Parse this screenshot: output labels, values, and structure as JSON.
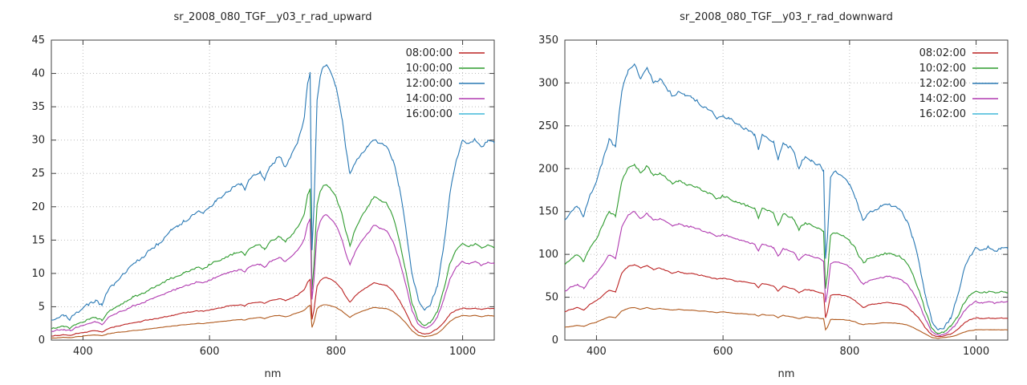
{
  "page": {
    "background": "#ffffff"
  },
  "chart_data": [
    {
      "type": "line",
      "title": "sr_2008_080_TGF__y03_r_rad_upward",
      "xlabel": "nm",
      "xlim": [
        350,
        1050
      ],
      "xticks": [
        400,
        600,
        800,
        1000
      ],
      "ylim": [
        0,
        45
      ],
      "yticks": [
        0,
        5,
        10,
        15,
        20,
        25,
        30,
        35,
        40,
        45
      ],
      "grid": true,
      "legend_position": "top-right",
      "x": [
        350,
        360,
        370,
        380,
        390,
        400,
        410,
        420,
        430,
        440,
        450,
        460,
        470,
        480,
        490,
        500,
        510,
        520,
        530,
        540,
        550,
        560,
        570,
        580,
        590,
        600,
        610,
        620,
        630,
        640,
        650,
        656,
        662,
        670,
        680,
        687,
        695,
        700,
        710,
        715,
        720,
        725,
        730,
        740,
        750,
        755,
        759,
        762,
        765,
        770,
        775,
        780,
        785,
        790,
        800,
        810,
        815,
        822,
        830,
        840,
        850,
        860,
        870,
        880,
        890,
        900,
        910,
        920,
        930,
        940,
        950,
        960,
        970,
        980,
        990,
        1000,
        1010,
        1020,
        1030,
        1040,
        1050
      ],
      "series": [
        {
          "label": "08:00:00",
          "legend_color": "#bb2222",
          "line_color": "#bb2222",
          "values": [
            0.6,
            0.7,
            0.8,
            0.7,
            1.0,
            1.1,
            1.3,
            1.4,
            1.2,
            1.7,
            2.0,
            2.2,
            2.4,
            2.6,
            2.7,
            3.0,
            3.1,
            3.3,
            3.5,
            3.7,
            3.9,
            4.1,
            4.2,
            4.4,
            4.3,
            4.5,
            4.7,
            4.9,
            5.1,
            5.2,
            5.3,
            5.1,
            5.5,
            5.6,
            5.7,
            5.5,
            5.9,
            6.0,
            6.2,
            6.1,
            5.9,
            6.1,
            6.3,
            6.8,
            7.6,
            8.7,
            9.1,
            3.1,
            4.5,
            8.1,
            8.9,
            9.3,
            9.4,
            9.2,
            8.6,
            7.5,
            6.6,
            5.7,
            6.6,
            7.4,
            8.0,
            8.6,
            8.4,
            8.2,
            7.4,
            6.0,
            4.2,
            2.2,
            1.2,
            0.9,
            1.1,
            1.7,
            2.6,
            3.9,
            4.5,
            4.8,
            4.7,
            4.8,
            4.6,
            4.8,
            4.7
          ]
        },
        {
          "label": "10:00:00",
          "legend_color": "#2e9b2e",
          "line_color": "#2e9b2e",
          "values": [
            1.7,
            1.9,
            2.0,
            1.8,
            2.4,
            2.7,
            3.1,
            3.4,
            2.9,
            4.2,
            4.8,
            5.4,
            5.9,
            6.5,
            6.8,
            7.3,
            7.8,
            8.2,
            8.8,
            9.3,
            9.6,
            10.1,
            10.5,
            10.9,
            10.7,
            11.3,
            11.8,
            12.2,
            12.6,
            13.0,
            13.3,
            12.7,
            13.6,
            14.0,
            14.3,
            13.6,
            14.7,
            15.0,
            15.5,
            15.1,
            14.7,
            15.3,
            15.8,
            17.0,
            19.0,
            21.8,
            22.7,
            7.6,
            11.3,
            20.3,
            22.3,
            23.2,
            23.3,
            22.9,
            21.5,
            18.6,
            16.4,
            14.1,
            16.5,
            18.5,
            20.0,
            21.5,
            21.0,
            20.5,
            18.5,
            15.0,
            10.5,
            5.5,
            3.0,
            2.2,
            2.8,
            4.2,
            7.5,
            11.5,
            13.5,
            14.5,
            14.0,
            14.5,
            13.8,
            14.3,
            14.0
          ]
        },
        {
          "label": "12:00:00",
          "legend_color": "#2878b4",
          "line_color": "#2878b4",
          "values": [
            3.0,
            3.3,
            3.6,
            3.2,
            4.2,
            4.8,
            5.5,
            6.0,
            5.2,
            7.5,
            8.5,
            9.5,
            10.5,
            11.5,
            12.0,
            13.0,
            13.8,
            14.5,
            15.5,
            16.5,
            17.0,
            17.8,
            18.5,
            19.2,
            19.0,
            20.0,
            20.8,
            21.5,
            22.3,
            23.0,
            23.5,
            22.5,
            24.0,
            24.8,
            25.3,
            24.0,
            26.0,
            26.5,
            27.5,
            26.8,
            26.0,
            27.0,
            28.0,
            30.0,
            33.5,
            38.5,
            40.2,
            13.5,
            20.0,
            36.0,
            39.5,
            41.0,
            41.3,
            40.5,
            38.0,
            33.0,
            29.0,
            25.0,
            26.5,
            28.0,
            29.0,
            30.0,
            29.5,
            29.0,
            27.0,
            23.0,
            17.0,
            10.0,
            6.0,
            4.5,
            5.5,
            8.0,
            14.0,
            22.0,
            27.0,
            30.0,
            29.5,
            30.0,
            29.0,
            30.0,
            29.5
          ]
        },
        {
          "label": "14:00:00",
          "legend_color": "#b03ab0",
          "line_color": "#b03ab0",
          "values": [
            1.3,
            1.5,
            1.6,
            1.4,
            1.9,
            2.2,
            2.5,
            2.7,
            2.3,
            3.4,
            3.9,
            4.3,
            4.7,
            5.2,
            5.4,
            5.9,
            6.2,
            6.6,
            7.0,
            7.4,
            7.7,
            8.1,
            8.4,
            8.7,
            8.6,
            9.0,
            9.4,
            9.8,
            10.1,
            10.4,
            10.6,
            10.2,
            10.9,
            11.2,
            11.4,
            10.9,
            11.8,
            12.0,
            12.4,
            12.1,
            11.8,
            12.2,
            12.6,
            13.6,
            15.2,
            17.4,
            18.2,
            6.1,
            9.0,
            16.2,
            17.8,
            18.6,
            18.8,
            18.3,
            17.2,
            14.9,
            13.1,
            11.3,
            13.2,
            14.8,
            16.0,
            17.2,
            16.8,
            16.4,
            14.8,
            12.0,
            8.4,
            4.4,
            2.4,
            1.8,
            2.2,
            3.4,
            6.0,
            9.2,
            11.0,
            11.8,
            11.4,
            11.8,
            11.2,
            11.7,
            11.4
          ]
        },
        {
          "label": "16:00:00",
          "legend_color": "#40b8d8",
          "line_color": "#b05a1e",
          "values": [
            0.3,
            0.35,
            0.4,
            0.35,
            0.5,
            0.6,
            0.7,
            0.75,
            0.65,
            0.95,
            1.1,
            1.2,
            1.3,
            1.45,
            1.5,
            1.65,
            1.75,
            1.85,
            2.0,
            2.1,
            2.2,
            2.3,
            2.4,
            2.5,
            2.45,
            2.6,
            2.7,
            2.8,
            2.9,
            3.0,
            3.1,
            3.0,
            3.2,
            3.3,
            3.4,
            3.2,
            3.5,
            3.6,
            3.7,
            3.6,
            3.5,
            3.6,
            3.8,
            4.1,
            4.5,
            5.0,
            5.2,
            1.9,
            2.7,
            4.7,
            5.1,
            5.3,
            5.3,
            5.2,
            4.9,
            4.3,
            3.9,
            3.4,
            3.9,
            4.3,
            4.6,
            4.9,
            4.8,
            4.7,
            4.3,
            3.6,
            2.6,
            1.4,
            0.7,
            0.5,
            0.65,
            1.0,
            1.8,
            2.8,
            3.4,
            3.7,
            3.6,
            3.7,
            3.5,
            3.7,
            3.6
          ]
        }
      ]
    },
    {
      "type": "line",
      "title": "sr_2008_080_TGF__y03_r_rad_downward",
      "xlabel": "nm",
      "xlim": [
        350,
        1050
      ],
      "xticks": [
        400,
        600,
        800,
        1000
      ],
      "ylim": [
        0,
        350
      ],
      "yticks": [
        0,
        50,
        100,
        150,
        200,
        250,
        300,
        350
      ],
      "grid": true,
      "legend_position": "top-right",
      "x": [
        350,
        360,
        370,
        380,
        390,
        400,
        410,
        420,
        430,
        440,
        450,
        460,
        470,
        480,
        490,
        500,
        510,
        520,
        530,
        540,
        550,
        560,
        570,
        580,
        590,
        600,
        610,
        620,
        630,
        640,
        650,
        656,
        662,
        670,
        680,
        687,
        695,
        700,
        710,
        715,
        720,
        725,
        730,
        740,
        750,
        755,
        759,
        762,
        765,
        770,
        775,
        780,
        785,
        790,
        800,
        810,
        815,
        822,
        830,
        840,
        850,
        860,
        870,
        880,
        890,
        900,
        910,
        920,
        930,
        940,
        950,
        960,
        970,
        980,
        990,
        1000,
        1010,
        1020,
        1030,
        1040,
        1050
      ],
      "series": [
        {
          "label": "08:02:00",
          "legend_color": "#bb2222",
          "line_color": "#bb2222",
          "values": [
            33,
            36,
            38,
            35,
            42,
            46,
            52,
            58,
            56,
            78,
            86,
            88,
            84,
            87,
            82,
            84,
            81,
            78,
            80,
            78,
            78,
            76,
            75,
            73,
            71,
            72,
            71,
            69,
            68,
            67,
            66,
            61,
            66,
            65,
            63,
            57,
            63,
            62,
            60,
            58,
            55,
            57,
            59,
            58,
            56,
            55,
            54,
            26,
            33,
            52,
            53,
            53,
            53,
            52,
            50,
            45,
            42,
            38,
            41,
            42,
            43,
            44,
            43,
            42,
            39,
            33,
            25,
            14,
            6,
            4,
            5,
            7,
            12,
            19,
            24,
            26,
            25,
            26,
            25,
            26,
            25
          ]
        },
        {
          "label": "10:02:00",
          "legend_color": "#2e9b2e",
          "line_color": "#2e9b2e",
          "values": [
            88,
            95,
            99,
            92,
            108,
            118,
            134,
            150,
            144,
            185,
            201,
            205,
            195,
            203,
            192,
            195,
            189,
            182,
            186,
            182,
            181,
            178,
            174,
            171,
            165,
            168,
            165,
            162,
            159,
            156,
            154,
            142,
            154,
            151,
            148,
            134,
            147,
            146,
            142,
            136,
            128,
            134,
            137,
            134,
            131,
            129,
            127,
            60,
            77,
            122,
            125,
            125,
            123,
            122,
            116,
            106,
            97,
            90,
            95,
            97,
            100,
            101,
            100,
            97,
            90,
            77,
            58,
            33,
            14,
            8,
            10,
            16,
            26,
            42,
            52,
            57,
            55,
            57,
            55,
            57,
            56
          ]
        },
        {
          "label": "12:02:00",
          "legend_color": "#2878b4",
          "line_color": "#2878b4",
          "values": [
            140,
            150,
            155,
            145,
            170,
            185,
            210,
            235,
            225,
            290,
            315,
            322,
            305,
            318,
            300,
            305,
            295,
            285,
            290,
            285,
            283,
            278,
            272,
            268,
            258,
            262,
            258,
            253,
            248,
            244,
            240,
            222,
            240,
            236,
            232,
            210,
            230,
            228,
            222,
            212,
            200,
            210,
            214,
            210,
            205,
            202,
            198,
            95,
            120,
            190,
            196,
            195,
            193,
            190,
            182,
            165,
            152,
            140,
            148,
            152,
            156,
            158,
            156,
            152,
            140,
            120,
            90,
            52,
            22,
            12,
            15,
            25,
            50,
            80,
            98,
            108,
            105,
            108,
            104,
            108,
            106
          ]
        },
        {
          "label": "14:02:00",
          "legend_color": "#b03ab0",
          "line_color": "#b03ab0",
          "values": [
            57,
            62,
            65,
            60,
            71,
            78,
            88,
            99,
            95,
            132,
            146,
            150,
            142,
            148,
            140,
            142,
            138,
            133,
            136,
            133,
            132,
            130,
            127,
            125,
            121,
            123,
            121,
            118,
            116,
            114,
            112,
            104,
            112,
            110,
            108,
            98,
            107,
            106,
            103,
            99,
            93,
            97,
            100,
            98,
            96,
            94,
            92,
            44,
            56,
            89,
            91,
            91,
            90,
            89,
            85,
            77,
            71,
            65,
            69,
            71,
            73,
            74,
            73,
            71,
            66,
            56,
            42,
            24,
            10,
            6,
            7,
            12,
            20,
            33,
            41,
            45,
            43,
            45,
            43,
            45,
            44
          ]
        },
        {
          "label": "16:02:00",
          "legend_color": "#40b8d8",
          "line_color": "#b05a1e",
          "values": [
            15,
            16,
            17,
            16,
            19,
            21,
            24,
            27,
            26,
            34,
            37,
            38,
            36,
            38,
            36,
            37,
            36,
            35,
            36,
            35,
            35,
            34,
            34,
            33,
            32,
            33,
            32,
            31,
            31,
            30,
            30,
            28,
            30,
            29,
            29,
            26,
            29,
            28,
            27,
            26,
            25,
            26,
            27,
            26,
            26,
            25,
            25,
            12,
            15,
            24,
            24,
            24,
            24,
            24,
            23,
            21,
            19,
            18,
            19,
            19,
            20,
            20,
            20,
            19,
            18,
            15,
            11,
            7,
            3,
            2,
            3,
            4,
            6,
            9,
            11,
            12,
            12,
            12,
            12,
            12,
            12
          ]
        }
      ]
    }
  ],
  "style": {
    "grid_color": "#bdbdbd",
    "border_color": "#404040",
    "text_color": "#262626",
    "background": "#ffffff"
  }
}
